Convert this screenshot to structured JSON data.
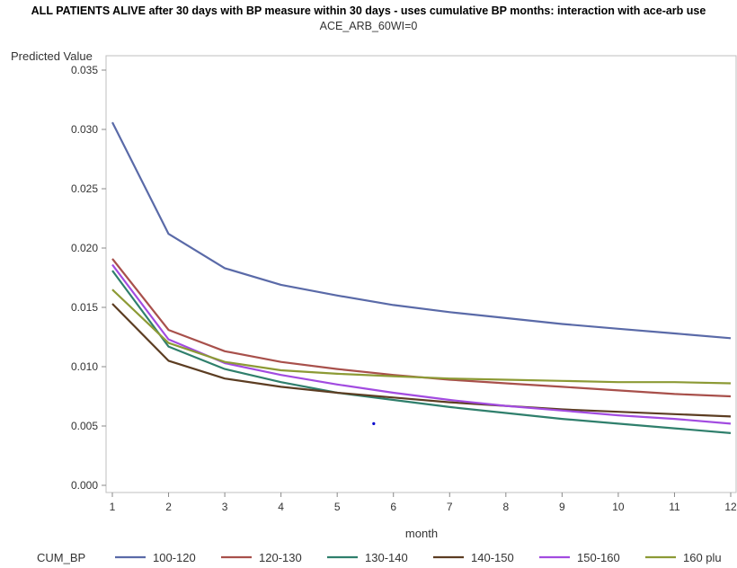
{
  "chart_data": {
    "type": "line",
    "title": "ALL PATIENTS ALIVE after 30 days with BP measure within 30 days - uses cumulative BP months: interaction with ace-arb use",
    "subtitle": "ACE_ARB_60WI=0",
    "xlabel": "month",
    "ylabel": "Predicted Value",
    "xlim": [
      1,
      12
    ],
    "ylim": [
      0.0,
      0.035
    ],
    "x": [
      1,
      2,
      3,
      4,
      5,
      6,
      7,
      8,
      9,
      10,
      11,
      12
    ],
    "x_tick_labels": [
      "1",
      "2",
      "3",
      "4",
      "5",
      "6",
      "7",
      "8",
      "9",
      "10",
      "11",
      "12"
    ],
    "y_ticks": [
      0.0,
      0.005,
      0.01,
      0.015,
      0.02,
      0.025,
      0.03,
      0.035
    ],
    "y_tick_labels": [
      "0.000",
      "0.005",
      "0.010",
      "0.015",
      "0.020",
      "0.025",
      "0.030",
      "0.035"
    ],
    "grid": false,
    "legend_title": "CUM_BP",
    "legend_position": "bottom",
    "series": [
      {
        "name": "100-120",
        "color": "#5a6aa8",
        "values": [
          0.0306,
          0.0212,
          0.0183,
          0.0169,
          0.016,
          0.0152,
          0.0146,
          0.0141,
          0.0136,
          0.0132,
          0.0128,
          0.0124
        ]
      },
      {
        "name": "120-130",
        "color": "#a8504b",
        "values": [
          0.0191,
          0.0131,
          0.0113,
          0.0104,
          0.0098,
          0.0093,
          0.0089,
          0.0086,
          0.0083,
          0.008,
          0.0077,
          0.0075
        ]
      },
      {
        "name": "130-140",
        "color": "#2f7f6c",
        "values": [
          0.0181,
          0.0117,
          0.0098,
          0.0087,
          0.0078,
          0.0072,
          0.0066,
          0.0061,
          0.0056,
          0.0052,
          0.0048,
          0.0044
        ]
      },
      {
        "name": "140-150",
        "color": "#5c3d22",
        "values": [
          0.0153,
          0.0105,
          0.009,
          0.0083,
          0.0078,
          0.0074,
          0.007,
          0.0067,
          0.0064,
          0.0062,
          0.006,
          0.0058
        ]
      },
      {
        "name": "150-160",
        "color": "#a24be0",
        "values": [
          0.0186,
          0.0123,
          0.0103,
          0.0093,
          0.0085,
          0.0078,
          0.0072,
          0.0067,
          0.0063,
          0.0059,
          0.0056,
          0.0052
        ]
      },
      {
        "name": "160 plu",
        "color": "#8c9a35",
        "values": [
          0.0165,
          0.012,
          0.0104,
          0.0097,
          0.0094,
          0.0092,
          0.009,
          0.0089,
          0.0088,
          0.0087,
          0.0087,
          0.0086
        ]
      }
    ],
    "point": {
      "x": 5.65,
      "y": 0.0052,
      "color": "#0000cc"
    }
  }
}
